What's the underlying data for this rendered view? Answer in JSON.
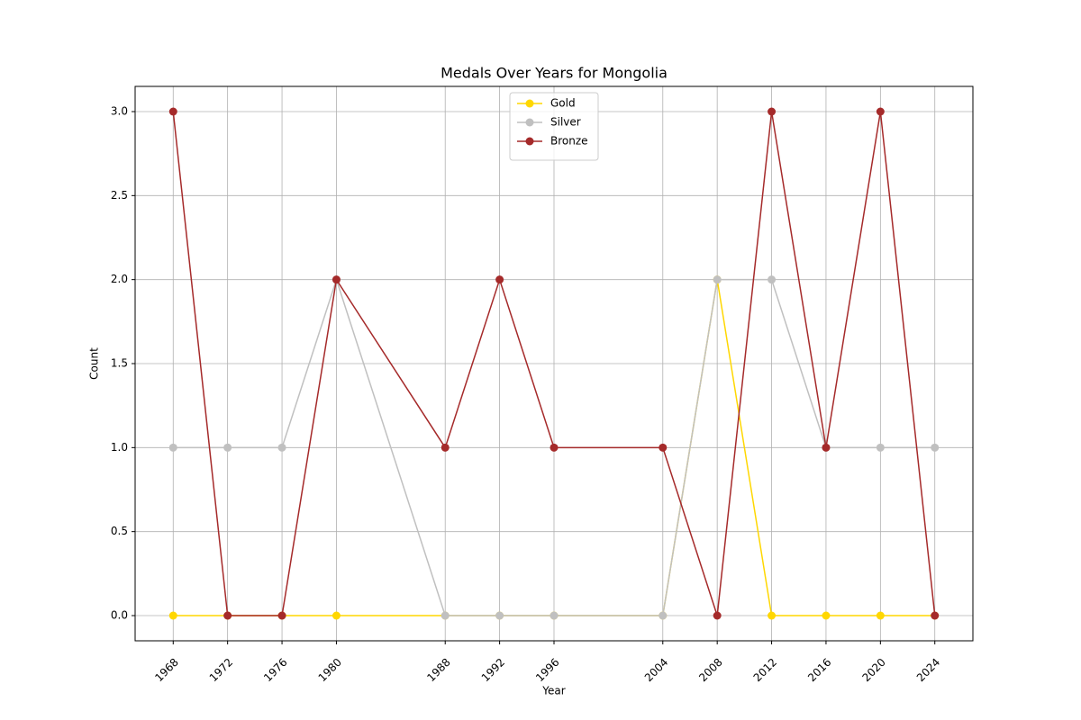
{
  "chart_data": {
    "type": "line",
    "title": "Medals Over Years for Mongolia",
    "x_label": "Year",
    "y_label": "Count",
    "x": [
      1968,
      1972,
      1976,
      1980,
      1988,
      1992,
      1996,
      2004,
      2008,
      2012,
      2016,
      2020,
      2024
    ],
    "series": [
      {
        "name": "Gold",
        "color": "#ffd700",
        "values": [
          0,
          0,
          0,
          0,
          0,
          0,
          0,
          0,
          2,
          0,
          0,
          0,
          0
        ]
      },
      {
        "name": "Silver",
        "color": "#c0c0c0",
        "values": [
          1,
          1,
          1,
          2,
          0,
          0,
          0,
          0,
          2,
          2,
          1,
          1,
          1
        ]
      },
      {
        "name": "Bronze",
        "color": "#a52a2a",
        "values": [
          3,
          0,
          0,
          2,
          1,
          2,
          1,
          1,
          0,
          3,
          1,
          3,
          0
        ]
      }
    ],
    "xlim": [
      1965.2,
      2026.8
    ],
    "xticks": [
      1968,
      1972,
      1976,
      1980,
      1988,
      1992,
      1996,
      2004,
      2008,
      2012,
      2016,
      2020,
      2024
    ],
    "ylim": [
      -0.15,
      3.15
    ],
    "yticks": [
      {
        "value": 0,
        "label": "0.0"
      },
      {
        "value": 0.5,
        "label": "0.5"
      },
      {
        "value": 1,
        "label": "1.0"
      },
      {
        "value": 1.5,
        "label": "1.5"
      },
      {
        "value": 2,
        "label": "2.0"
      },
      {
        "value": 2.5,
        "label": "2.5"
      },
      {
        "value": 3,
        "label": "3.0"
      }
    ],
    "grid": true,
    "legend": "upper center"
  }
}
